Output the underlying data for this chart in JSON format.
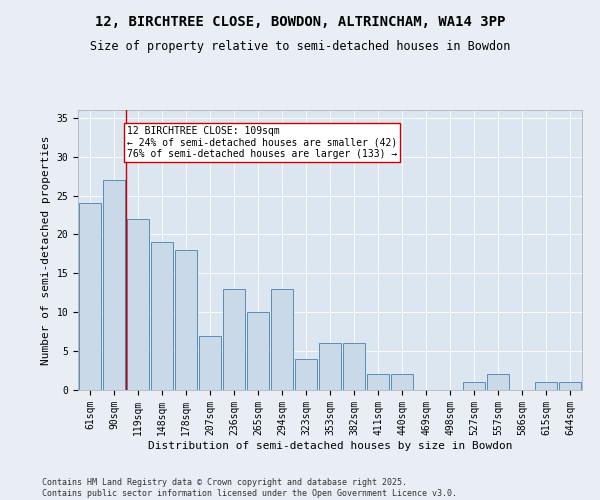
{
  "title_line1": "12, BIRCHTREE CLOSE, BOWDON, ALTRINCHAM, WA14 3PP",
  "title_line2": "Size of property relative to semi-detached houses in Bowdon",
  "xlabel": "Distribution of semi-detached houses by size in Bowdon",
  "ylabel": "Number of semi-detached properties",
  "categories": [
    "61sqm",
    "90sqm",
    "119sqm",
    "148sqm",
    "178sqm",
    "207sqm",
    "236sqm",
    "265sqm",
    "294sqm",
    "323sqm",
    "353sqm",
    "382sqm",
    "411sqm",
    "440sqm",
    "469sqm",
    "498sqm",
    "527sqm",
    "557sqm",
    "586sqm",
    "615sqm",
    "644sqm"
  ],
  "values": [
    24,
    27,
    22,
    19,
    18,
    7,
    13,
    10,
    13,
    4,
    6,
    6,
    2,
    2,
    0,
    0,
    1,
    2,
    0,
    1,
    1
  ],
  "bar_color": "#c9d9e8",
  "bar_edge_color": "#5b8db8",
  "vline_color": "#cc0000",
  "vline_x": 1.5,
  "annotation_text": "12 BIRCHTREE CLOSE: 109sqm\n← 24% of semi-detached houses are smaller (42)\n76% of semi-detached houses are larger (133) →",
  "annotation_box_color": "#ffffff",
  "annotation_box_edge_color": "#cc0000",
  "ylim": [
    0,
    36
  ],
  "yticks": [
    0,
    5,
    10,
    15,
    20,
    25,
    30,
    35
  ],
  "background_color": "#e8eef4",
  "plot_background_color": "#dce6f0",
  "footer_text": "Contains HM Land Registry data © Crown copyright and database right 2025.\nContains public sector information licensed under the Open Government Licence v3.0.",
  "title_fontsize": 10,
  "subtitle_fontsize": 8.5,
  "axis_label_fontsize": 8,
  "tick_fontsize": 7,
  "footer_fontsize": 6,
  "annot_fontsize": 7
}
